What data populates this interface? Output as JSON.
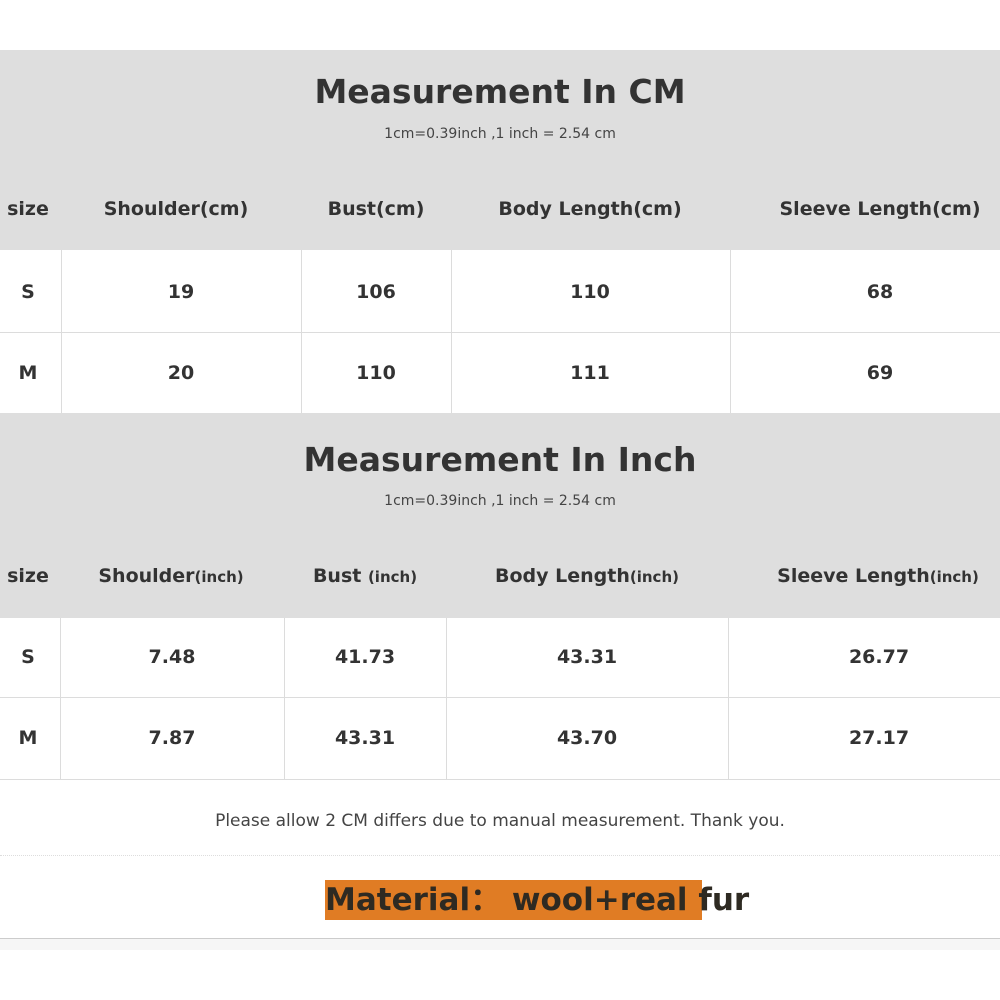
{
  "cm_table": {
    "title": "Measurement In CM",
    "subtitle": "1cm=0.39inch ,1 inch = 2.54 cm",
    "headers": [
      "size",
      "Shoulder(cm)",
      "Bust(cm)",
      "Body Length(cm)",
      "Sleeve Length(cm)"
    ],
    "rows": [
      [
        "S",
        "19",
        "106",
        "110",
        "68"
      ],
      [
        "M",
        "20",
        "110",
        "111",
        "69"
      ]
    ]
  },
  "inch_table": {
    "title": "Measurement In Inch",
    "subtitle": "1cm=0.39inch ,1 inch = 2.54 cm",
    "headers": [
      {
        "main": "size",
        "unit": ""
      },
      {
        "main": "Shoulder",
        "unit": "(inch)"
      },
      {
        "main": "Bust ",
        "unit": "(inch)"
      },
      {
        "main": "Body Length",
        "unit": "(inch)"
      },
      {
        "main": "Sleeve Length",
        "unit": "(inch)"
      }
    ],
    "rows": [
      [
        "S",
        "7.48",
        "41.73",
        "43.31",
        "26.77"
      ],
      [
        "M",
        "7.87",
        "43.31",
        "43.70",
        "27.17"
      ]
    ]
  },
  "note": "Please allow 2 CM differs due to manual measurement. Thank you.",
  "material": "Material： wool+real fur",
  "colors": {
    "header_bg": "#dedede",
    "material_highlight": "#e07c24"
  }
}
